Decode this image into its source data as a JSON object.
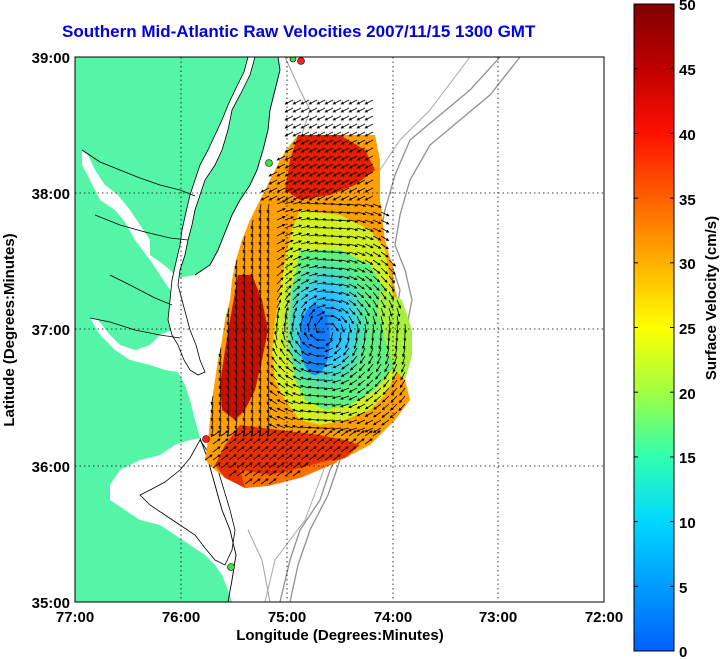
{
  "title": "Southern Mid-Atlantic Raw Velocities 2007/11/15 1300 GMT",
  "xlabel": "Longitude (Degrees:Minutes)",
  "ylabel": "Latitude (Degrees:Minutes)",
  "x_ticks": [
    "77:00",
    "76:00",
    "75:00",
    "74:00",
    "73:00",
    "72:00"
  ],
  "y_ticks": [
    "39:00",
    "38:00",
    "37:00",
    "36:00",
    "35:00"
  ],
  "colorbar": {
    "label": "Surface Velocity (cm/s)",
    "ticks": [
      "50",
      "45",
      "40",
      "35",
      "30",
      "25",
      "20",
      "15",
      "10",
      "5",
      "0"
    ]
  },
  "colors": {
    "land": "#55f5a8",
    "title": "#0000e0",
    "stations": [
      "#ff2020",
      "#40e040"
    ]
  },
  "chart_data": {
    "type": "heatmap",
    "title": "Southern Mid-Atlantic Raw Velocities 2007/11/15 1300 GMT",
    "xlabel": "Longitude (Degrees:Minutes)",
    "ylabel": "Latitude (Degrees:Minutes)",
    "xlim": [
      -77,
      -72
    ],
    "ylim": [
      35,
      39
    ],
    "colorbar_range": [
      0,
      50
    ],
    "units": "cm/s",
    "grid": true
  }
}
